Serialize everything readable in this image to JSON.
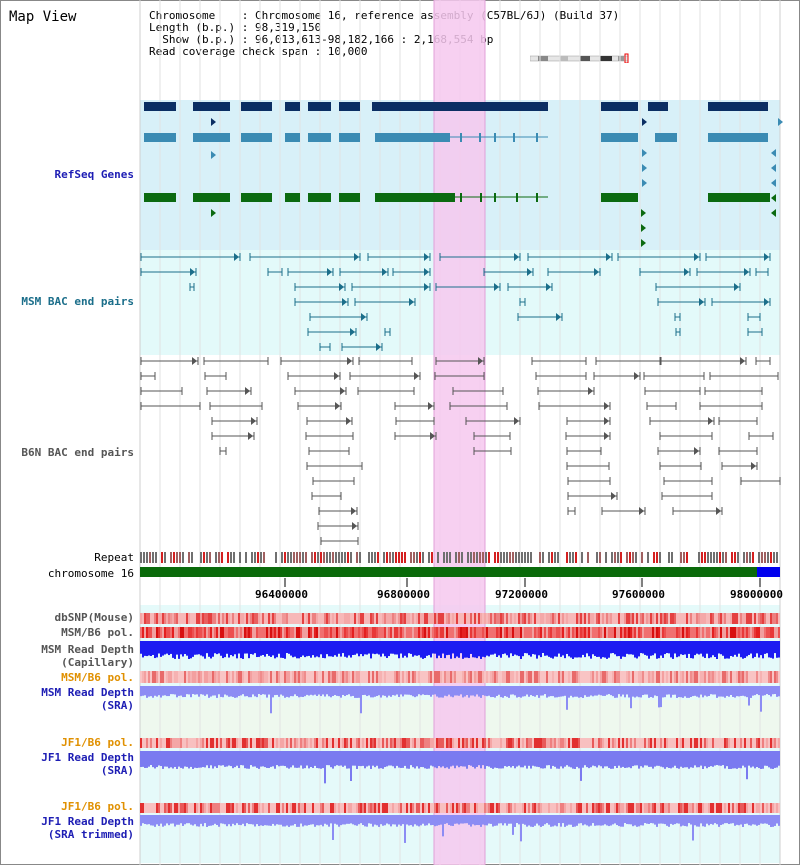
{
  "title": "Map View",
  "info": {
    "line1": "Chromosome    : Chromosome 16, reference assembly (C57BL/6J) (Build 37)",
    "line2": "Length (b.p.) : 98,319,150",
    "line3": "  Show (b.p.) : 96,013,613-98,182,166 : 2,168,554 bp",
    "line4": "Read coverage check span : 10,000"
  },
  "tracks": {
    "refseq": "RefSeq Genes",
    "msm_bac": "MSM BAC end pairs",
    "b6n_bac": "B6N BAC end pairs",
    "repeat": "Repeat",
    "chromosome": "chromosome 16",
    "dbsnp": "dbSNP(Mouse)",
    "msm_b6_pol": "MSM/B6 pol.",
    "msm_depth_cap_1": "MSM Read Depth",
    "msm_depth_cap_2": "(Capillary)",
    "msm_b6_pol_2": "MSM/B6 pol.",
    "msm_depth_sra_1": "MSM Read Depth",
    "msm_depth_sra_2": "(SRA)",
    "jf1_b6_pol": "JF1/B6 pol.",
    "jf1_depth_sra_1": "JF1 Read Depth",
    "jf1_depth_sra_2": "(SRA)",
    "jf1_b6_pol_2": "JF1/B6 pol.",
    "jf1_depth_trim_1": "JF1 Read Depth",
    "jf1_depth_trim_2": "(SRA trimmed)"
  },
  "axis_ticks": [
    "96400000",
    "96800000",
    "97200000",
    "97600000",
    "98000000"
  ],
  "colors": {
    "refseq_dark": "#0b2e63",
    "refseq_mid": "#3b8bb3",
    "refseq_green": "#0b6a10",
    "msm_bac": "#1b6e8a",
    "b6n_bac": "#555555",
    "highlight": "#f6c8ee",
    "refseq_bg": "#d8f0f8",
    "msm_bg": "#e3fafa",
    "chrom": "#0a6a0a",
    "chrom_end": "#0000ee"
  }
}
